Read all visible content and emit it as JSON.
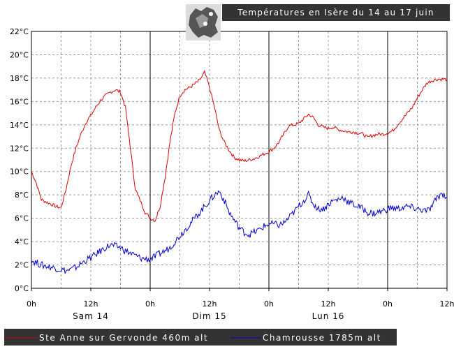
{
  "chart_data": {
    "type": "line",
    "title": "Températures en Isère du 14 au 17 juin",
    "ylim": [
      0,
      22
    ],
    "y_ticks": [
      "0°C",
      "2°C",
      "4°C",
      "6°C",
      "8°C",
      "10°C",
      "12°C",
      "14°C",
      "16°C",
      "18°C",
      "20°C",
      "22°C"
    ],
    "x_range_hours": [
      0,
      84
    ],
    "x_ticks": [
      "0h",
      "12h",
      "0h",
      "12h",
      "0h",
      "12h",
      "0h",
      "12h"
    ],
    "day_labels": [
      "Sam 14",
      "Dim 15",
      "Lun 16"
    ],
    "grid": true,
    "legend_position": "bottom",
    "series": [
      {
        "name": "Ste Anne sur Gervonde 460m alt",
        "color": "#dd0000",
        "x": [
          0,
          1,
          2,
          3,
          4,
          5,
          6,
          7,
          8,
          9,
          10,
          11,
          12,
          13,
          14,
          15,
          16,
          17,
          18,
          19,
          20,
          21,
          22,
          23,
          24,
          25,
          26,
          27,
          28,
          29,
          30,
          31,
          32,
          33,
          34,
          35,
          36,
          37,
          38,
          39,
          40,
          41,
          42,
          43,
          44,
          45,
          46,
          47,
          48,
          49,
          50,
          51,
          52,
          53,
          54,
          55,
          56,
          57,
          58,
          59,
          60,
          61,
          62,
          63,
          64,
          65,
          66,
          67,
          68,
          69,
          70,
          71,
          72,
          73,
          74,
          75,
          76,
          77,
          78,
          79,
          80,
          81,
          82,
          83,
          84
        ],
        "y": [
          10.0,
          9.0,
          7.6,
          7.4,
          7.2,
          7.0,
          6.9,
          8.5,
          10.5,
          12.0,
          13.2,
          14.2,
          14.8,
          15.5,
          16.1,
          16.5,
          16.8,
          17.0,
          16.8,
          15.5,
          12.0,
          8.5,
          7.5,
          6.5,
          6.0,
          5.8,
          7.0,
          9.5,
          12.5,
          15.0,
          16.5,
          17.0,
          17.2,
          17.5,
          17.8,
          18.5,
          17.2,
          15.5,
          13.5,
          12.5,
          11.8,
          11.2,
          11.0,
          10.9,
          11.0,
          11.1,
          11.3,
          11.5,
          11.7,
          12.0,
          12.5,
          13.2,
          13.9,
          14.0,
          14.1,
          14.5,
          14.9,
          14.6,
          14.0,
          13.8,
          13.7,
          13.8,
          13.6,
          13.5,
          13.4,
          13.4,
          13.3,
          13.2,
          12.9,
          13.1,
          13.2,
          13.2,
          13.3,
          13.5,
          14.0,
          14.5,
          15.0,
          15.5,
          16.3,
          17.0,
          17.6,
          17.8,
          17.9,
          17.9,
          17.9
        ],
        "stroke_noise": 0.15
      },
      {
        "name": "Chamrousse 1785m alt",
        "color": "#0000cc",
        "x": [
          0,
          1,
          2,
          3,
          4,
          5,
          6,
          7,
          8,
          9,
          10,
          11,
          12,
          13,
          14,
          15,
          16,
          17,
          18,
          19,
          20,
          21,
          22,
          23,
          24,
          25,
          26,
          27,
          28,
          29,
          30,
          31,
          32,
          33,
          34,
          35,
          36,
          37,
          38,
          39,
          40,
          41,
          42,
          43,
          44,
          45,
          46,
          47,
          48,
          49,
          50,
          51,
          52,
          53,
          54,
          55,
          56,
          57,
          58,
          59,
          60,
          61,
          62,
          63,
          64,
          65,
          66,
          67,
          68,
          69,
          70,
          71,
          72,
          73,
          74,
          75,
          76,
          77,
          78,
          79,
          80,
          81,
          82,
          83,
          84
        ],
        "y": [
          2.4,
          2.2,
          2.0,
          1.9,
          1.8,
          1.7,
          1.6,
          1.5,
          1.6,
          1.8,
          2.1,
          2.4,
          2.6,
          2.9,
          3.2,
          3.5,
          3.7,
          3.6,
          3.5,
          3.2,
          3.0,
          2.8,
          2.6,
          2.5,
          2.5,
          2.7,
          3.0,
          3.2,
          3.5,
          4.0,
          4.5,
          5.0,
          5.5,
          6.0,
          6.5,
          7.0,
          7.5,
          8.0,
          8.3,
          7.5,
          6.5,
          5.8,
          5.2,
          4.8,
          4.6,
          4.8,
          5.0,
          5.3,
          5.5,
          5.5,
          5.4,
          5.6,
          6.0,
          6.5,
          7.0,
          7.5,
          8.0,
          7.2,
          6.8,
          6.8,
          7.2,
          7.5,
          7.6,
          7.8,
          7.4,
          7.2,
          7.0,
          6.8,
          6.5,
          6.4,
          6.5,
          6.6,
          6.8,
          6.9,
          6.8,
          6.9,
          7.0,
          6.9,
          6.8,
          6.7,
          6.6,
          7.0,
          7.8,
          8.1,
          7.8
        ],
        "stroke_noise": 0.3
      }
    ]
  }
}
